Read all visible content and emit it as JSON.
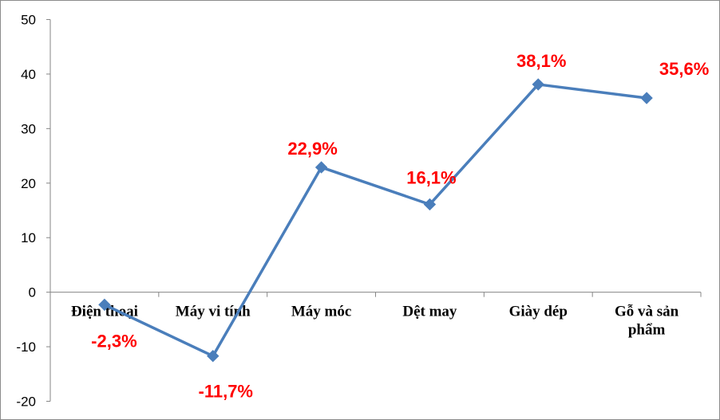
{
  "chart_data": {
    "type": "line",
    "categories": [
      [
        "Điện thoại"
      ],
      [
        "Máy vi tính"
      ],
      [
        "Máy móc"
      ],
      [
        "Dệt may"
      ],
      [
        "Giày dép"
      ],
      [
        "Gỗ và sản",
        "phẩm"
      ]
    ],
    "series": [
      {
        "values": [
          -2.3,
          -11.7,
          22.9,
          16.1,
          38.1,
          35.6
        ],
        "color": "#4a7ebb"
      }
    ],
    "data_labels": [
      "-2,3%",
      "-11,7%",
      "22,9%",
      "16,1%",
      "38,1%",
      "35,6%"
    ],
    "data_label_color": "#ff0000",
    "y_ticks": [
      "50",
      "40",
      "30",
      "20",
      "10",
      "0",
      "-10",
      "-20"
    ],
    "ylim": [
      -20,
      50
    ],
    "grid": false,
    "legend": "none",
    "marker": "diamond"
  }
}
